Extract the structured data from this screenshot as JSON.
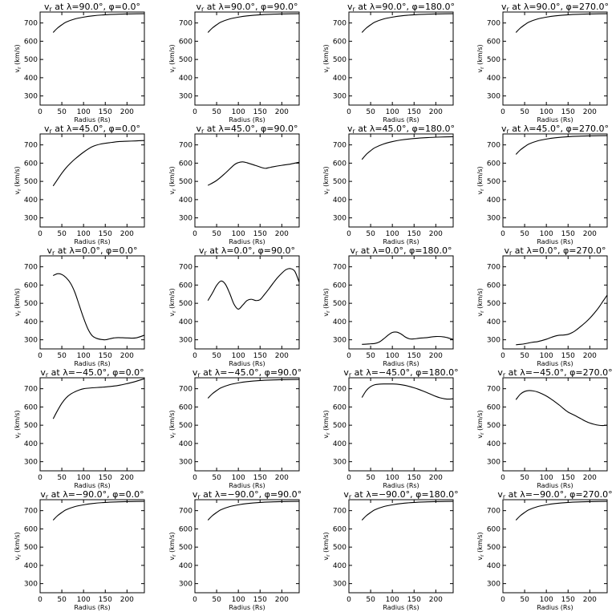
{
  "chart_data": [
    {
      "type": "line",
      "title": "v_r at λ=90.0°, φ=0.0°",
      "title_prefix": "v",
      "title_sub": "r",
      "title_rest": " at λ=90.0°, φ=0.0°",
      "xlabel": "Radius (Rs)",
      "ylabel": "v_r (km/s)",
      "xlim": [
        0,
        240
      ],
      "ylim": [
        250,
        760
      ],
      "xticks": [
        0,
        50,
        100,
        150,
        200
      ],
      "yticks": [
        300,
        400,
        500,
        600,
        700
      ],
      "x": [
        30,
        40,
        50,
        60,
        80,
        100,
        120,
        150,
        180,
        210,
        240
      ],
      "y": [
        648,
        672,
        690,
        705,
        722,
        732,
        739,
        745,
        748,
        750,
        751
      ]
    },
    {
      "type": "line",
      "title": "v_r at λ=90.0°, φ=90.0°",
      "title_prefix": "v",
      "title_sub": "r",
      "title_rest": " at λ=90.0°, φ=90.0°",
      "xlabel": "Radius (Rs)",
      "ylabel": "v_r (km/s)",
      "xlim": [
        0,
        240
      ],
      "ylim": [
        250,
        760
      ],
      "xticks": [
        0,
        50,
        100,
        150,
        200
      ],
      "yticks": [
        300,
        400,
        500,
        600,
        700
      ],
      "x": [
        30,
        40,
        50,
        60,
        80,
        100,
        120,
        150,
        180,
        210,
        240
      ],
      "y": [
        648,
        672,
        690,
        705,
        722,
        732,
        739,
        745,
        748,
        750,
        751
      ]
    },
    {
      "type": "line",
      "title": "v_r at λ=90.0°, φ=180.0°",
      "title_prefix": "v",
      "title_sub": "r",
      "title_rest": " at λ=90.0°, φ=180.0°",
      "xlabel": "Radius (Rs)",
      "ylabel": "v_r (km/s)",
      "xlim": [
        0,
        240
      ],
      "ylim": [
        250,
        760
      ],
      "xticks": [
        0,
        50,
        100,
        150,
        200
      ],
      "yticks": [
        300,
        400,
        500,
        600,
        700
      ],
      "x": [
        30,
        40,
        50,
        60,
        80,
        100,
        120,
        150,
        180,
        210,
        240
      ],
      "y": [
        648,
        672,
        690,
        705,
        722,
        732,
        739,
        745,
        748,
        750,
        751
      ]
    },
    {
      "type": "line",
      "title": "v_r at λ=90.0°, φ=270.0°",
      "title_prefix": "v",
      "title_sub": "r",
      "title_rest": " at λ=90.0°, φ=270.0°",
      "xlabel": "Radius (Rs)",
      "ylabel": "v_r (km/s)",
      "xlim": [
        0,
        240
      ],
      "ylim": [
        250,
        760
      ],
      "xticks": [
        0,
        50,
        100,
        150,
        200
      ],
      "yticks": [
        300,
        400,
        500,
        600,
        700
      ],
      "x": [
        30,
        40,
        50,
        60,
        80,
        100,
        120,
        150,
        180,
        210,
        240
      ],
      "y": [
        648,
        672,
        690,
        705,
        722,
        732,
        739,
        745,
        748,
        750,
        751
      ]
    },
    {
      "type": "line",
      "title": "v_r at λ=45.0°, φ=0.0°",
      "title_prefix": "v",
      "title_sub": "r",
      "title_rest": " at λ=45.0°, φ=0.0°",
      "xlabel": "Radius (Rs)",
      "ylabel": "v_r (km/s)",
      "xlim": [
        0,
        240
      ],
      "ylim": [
        250,
        760
      ],
      "xticks": [
        0,
        50,
        100,
        150,
        200
      ],
      "yticks": [
        300,
        400,
        500,
        600,
        700
      ],
      "x": [
        30,
        40,
        50,
        60,
        70,
        80,
        100,
        120,
        140,
        160,
        180,
        200,
        220,
        240
      ],
      "y": [
        475,
        510,
        545,
        575,
        600,
        622,
        660,
        690,
        705,
        712,
        718,
        720,
        722,
        724
      ]
    },
    {
      "type": "line",
      "title": "v_r at λ=45.0°, φ=90.0°",
      "title_prefix": "v",
      "title_sub": "r",
      "title_rest": " at λ=45.0°, φ=90.0°",
      "xlabel": "Radius (Rs)",
      "ylabel": "v_r (km/s)",
      "xlim": [
        0,
        240
      ],
      "ylim": [
        250,
        760
      ],
      "xticks": [
        0,
        50,
        100,
        150,
        200
      ],
      "yticks": [
        300,
        400,
        500,
        600,
        700
      ],
      "x": [
        30,
        50,
        70,
        90,
        100,
        110,
        120,
        140,
        160,
        170,
        180,
        200,
        220,
        240
      ],
      "y": [
        478,
        505,
        545,
        590,
        603,
        607,
        602,
        587,
        572,
        575,
        580,
        588,
        595,
        605
      ]
    },
    {
      "type": "line",
      "title": "v_r at λ=45.0°, φ=180.0°",
      "title_prefix": "v",
      "title_sub": "r",
      "title_rest": " at λ=45.0°, φ=180.0°",
      "xlabel": "Radius (Rs)",
      "ylabel": "v_r (km/s)",
      "xlim": [
        0,
        240
      ],
      "ylim": [
        250,
        760
      ],
      "xticks": [
        0,
        50,
        100,
        150,
        200
      ],
      "yticks": [
        300,
        400,
        500,
        600,
        700
      ],
      "x": [
        30,
        40,
        50,
        60,
        80,
        100,
        120,
        150,
        180,
        210,
        240
      ],
      "y": [
        620,
        648,
        668,
        685,
        705,
        718,
        727,
        735,
        740,
        743,
        745
      ]
    },
    {
      "type": "line",
      "title": "v_r at λ=45.0°, φ=270.0°",
      "title_prefix": "v",
      "title_sub": "r",
      "title_rest": " at λ=45.0°, φ=270.0°",
      "xlabel": "Radius (Rs)",
      "ylabel": "v_r (km/s)",
      "xlim": [
        0,
        240
      ],
      "ylim": [
        250,
        760
      ],
      "xticks": [
        0,
        50,
        100,
        150,
        200
      ],
      "yticks": [
        300,
        400,
        500,
        600,
        700
      ],
      "x": [
        30,
        40,
        50,
        60,
        80,
        100,
        120,
        150,
        180,
        210,
        240
      ],
      "y": [
        648,
        672,
        690,
        705,
        722,
        732,
        739,
        745,
        748,
        750,
        751
      ]
    },
    {
      "type": "line",
      "title": "v_r at λ=0.0°, φ=0.0°",
      "title_prefix": "v",
      "title_sub": "r",
      "title_rest": " at λ=0.0°, φ=0.0°",
      "xlabel": "Radius (Rs)",
      "ylabel": "v_r (km/s)",
      "xlim": [
        0,
        240
      ],
      "ylim": [
        250,
        760
      ],
      "xticks": [
        0,
        50,
        100,
        150,
        200
      ],
      "yticks": [
        300,
        400,
        500,
        600,
        700
      ],
      "x": [
        30,
        40,
        50,
        60,
        70,
        80,
        90,
        100,
        110,
        120,
        130,
        140,
        150,
        160,
        170,
        180,
        200,
        220,
        240
      ],
      "y": [
        652,
        662,
        658,
        640,
        610,
        560,
        490,
        420,
        360,
        322,
        308,
        302,
        300,
        305,
        310,
        312,
        310,
        310,
        325
      ]
    },
    {
      "type": "line",
      "title": "v_r at λ=0.0°, φ=90.0°",
      "title_prefix": "v",
      "title_sub": "r",
      "title_rest": " at λ=0.0°, φ=90.0°",
      "xlabel": "Radius (Rs)",
      "ylabel": "v_r (km/s)",
      "xlim": [
        0,
        240
      ],
      "ylim": [
        250,
        760
      ],
      "xticks": [
        0,
        50,
        100,
        150,
        200
      ],
      "yticks": [
        300,
        400,
        500,
        600,
        700
      ],
      "x": [
        30,
        40,
        50,
        60,
        70,
        80,
        90,
        100,
        110,
        120,
        130,
        140,
        150,
        160,
        170,
        180,
        190,
        200,
        210,
        220,
        230,
        240
      ],
      "y": [
        515,
        555,
        598,
        622,
        605,
        555,
        495,
        468,
        490,
        515,
        522,
        515,
        520,
        548,
        578,
        610,
        640,
        665,
        685,
        690,
        675,
        615
      ]
    },
    {
      "type": "line",
      "title": "v_r at λ=0.0°, φ=180.0°",
      "title_prefix": "v",
      "title_sub": "r",
      "title_rest": " at λ=0.0°, φ=180.0°",
      "xlabel": "Radius (Rs)",
      "ylabel": "v_r (km/s)",
      "xlim": [
        0,
        240
      ],
      "ylim": [
        250,
        760
      ],
      "xticks": [
        0,
        50,
        100,
        150,
        200
      ],
      "yticks": [
        300,
        400,
        500,
        600,
        700
      ],
      "x": [
        30,
        40,
        50,
        60,
        70,
        80,
        90,
        100,
        110,
        120,
        130,
        140,
        150,
        160,
        170,
        180,
        200,
        220,
        240
      ],
      "y": [
        275,
        276,
        278,
        280,
        288,
        305,
        325,
        340,
        342,
        332,
        315,
        305,
        305,
        308,
        310,
        312,
        318,
        315,
        302
      ]
    },
    {
      "type": "line",
      "title": "v_r at λ=0.0°, φ=270.0°",
      "title_prefix": "v",
      "title_sub": "r",
      "title_rest": " at λ=0.0°, φ=270.0°",
      "xlabel": "Radius (Rs)",
      "ylabel": "v_r (km/s)",
      "xlim": [
        0,
        240
      ],
      "ylim": [
        250,
        760
      ],
      "xticks": [
        0,
        50,
        100,
        150,
        200
      ],
      "yticks": [
        300,
        400,
        500,
        600,
        700
      ],
      "x": [
        30,
        40,
        50,
        60,
        70,
        80,
        90,
        100,
        110,
        120,
        130,
        140,
        150,
        160,
        170,
        180,
        190,
        200,
        210,
        220,
        230,
        240
      ],
      "y": [
        273,
        275,
        278,
        283,
        287,
        290,
        296,
        303,
        312,
        320,
        325,
        326,
        330,
        340,
        356,
        375,
        395,
        418,
        445,
        475,
        510,
        545
      ]
    },
    {
      "type": "line",
      "title": "v_r at λ=−45.0°, φ=0.0°",
      "title_prefix": "v",
      "title_sub": "r",
      "title_rest": " at λ=−45.0°, φ=0.0°",
      "xlabel": "Radius (Rs)",
      "ylabel": "v_r (km/s)",
      "xlim": [
        0,
        240
      ],
      "ylim": [
        250,
        760
      ],
      "xticks": [
        0,
        50,
        100,
        150,
        200
      ],
      "yticks": [
        300,
        400,
        500,
        600,
        700
      ],
      "x": [
        30,
        40,
        50,
        60,
        70,
        80,
        90,
        100,
        120,
        140,
        160,
        180,
        200,
        220,
        240
      ],
      "y": [
        535,
        580,
        620,
        650,
        670,
        683,
        693,
        700,
        705,
        708,
        712,
        718,
        728,
        740,
        755
      ]
    },
    {
      "type": "line",
      "title": "v_r at λ=−45.0°, φ=90.0°",
      "title_prefix": "v",
      "title_sub": "r",
      "title_rest": " at λ=−45.0°, φ=90.0°",
      "xlabel": "Radius (Rs)",
      "ylabel": "v_r (km/s)",
      "xlim": [
        0,
        240
      ],
      "ylim": [
        250,
        760
      ],
      "xticks": [
        0,
        50,
        100,
        150,
        200
      ],
      "yticks": [
        300,
        400,
        500,
        600,
        700
      ],
      "x": [
        30,
        40,
        50,
        60,
        80,
        100,
        120,
        150,
        180,
        210,
        240
      ],
      "y": [
        648,
        672,
        690,
        705,
        722,
        732,
        739,
        745,
        748,
        750,
        751
      ]
    },
    {
      "type": "line",
      "title": "v_r at λ=−45.0°, φ=180.0°",
      "title_prefix": "v",
      "title_sub": "r",
      "title_rest": " at λ=−45.0°, φ=180.0°",
      "xlabel": "Radius (Rs)",
      "ylabel": "v_r (km/s)",
      "xlim": [
        0,
        240
      ],
      "ylim": [
        250,
        760
      ],
      "xticks": [
        0,
        50,
        100,
        150,
        200
      ],
      "yticks": [
        300,
        400,
        500,
        600,
        700
      ],
      "x": [
        30,
        40,
        50,
        60,
        70,
        80,
        90,
        100,
        110,
        120,
        130,
        140,
        150,
        160,
        170,
        180,
        190,
        200,
        210,
        220,
        230,
        240
      ],
      "y": [
        652,
        690,
        712,
        722,
        725,
        726,
        726,
        726,
        725,
        722,
        718,
        712,
        705,
        697,
        688,
        678,
        668,
        658,
        650,
        645,
        643,
        645
      ]
    },
    {
      "type": "line",
      "title": "v_r at λ=−45.0°, φ=270.0°",
      "title_prefix": "v",
      "title_sub": "r",
      "title_rest": " at λ=−45.0°, φ=270.0°",
      "xlabel": "Radius (Rs)",
      "ylabel": "v_r (km/s)",
      "xlim": [
        0,
        240
      ],
      "ylim": [
        250,
        760
      ],
      "xticks": [
        0,
        50,
        100,
        150,
        200
      ],
      "yticks": [
        300,
        400,
        500,
        600,
        700
      ],
      "x": [
        30,
        40,
        50,
        60,
        70,
        80,
        90,
        100,
        110,
        120,
        130,
        140,
        150,
        160,
        170,
        180,
        190,
        200,
        210,
        220,
        230,
        240
      ],
      "y": [
        640,
        670,
        685,
        690,
        688,
        682,
        672,
        660,
        645,
        628,
        610,
        590,
        572,
        560,
        548,
        535,
        522,
        512,
        505,
        500,
        498,
        500
      ]
    },
    {
      "type": "line",
      "title": "v_r at λ=−90.0°, φ=0.0°",
      "title_prefix": "v",
      "title_sub": "r",
      "title_rest": " at λ=−90.0°, φ=0.0°",
      "xlabel": "Radius (Rs)",
      "ylabel": "v_r (km/s)",
      "xlim": [
        0,
        240
      ],
      "ylim": [
        250,
        760
      ],
      "xticks": [
        0,
        50,
        100,
        150,
        200
      ],
      "yticks": [
        300,
        400,
        500,
        600,
        700
      ],
      "x": [
        30,
        40,
        50,
        60,
        80,
        100,
        120,
        150,
        180,
        210,
        240
      ],
      "y": [
        648,
        672,
        690,
        705,
        722,
        732,
        739,
        745,
        748,
        750,
        751
      ]
    },
    {
      "type": "line",
      "title": "v_r at λ=−90.0°, φ=90.0°",
      "title_prefix": "v",
      "title_sub": "r",
      "title_rest": " at λ=−90.0°, φ=90.0°",
      "xlabel": "Radius (Rs)",
      "ylabel": "v_r (km/s)",
      "xlim": [
        0,
        240
      ],
      "ylim": [
        250,
        760
      ],
      "xticks": [
        0,
        50,
        100,
        150,
        200
      ],
      "yticks": [
        300,
        400,
        500,
        600,
        700
      ],
      "x": [
        30,
        40,
        50,
        60,
        80,
        100,
        120,
        150,
        180,
        210,
        240
      ],
      "y": [
        648,
        672,
        690,
        705,
        722,
        732,
        739,
        745,
        748,
        750,
        751
      ]
    },
    {
      "type": "line",
      "title": "v_r at λ=−90.0°, φ=180.0°",
      "title_prefix": "v",
      "title_sub": "r",
      "title_rest": " at λ=−90.0°, φ=180.0°",
      "xlabel": "Radius (Rs)",
      "ylabel": "v_r (km/s)",
      "xlim": [
        0,
        240
      ],
      "ylim": [
        250,
        760
      ],
      "xticks": [
        0,
        50,
        100,
        150,
        200
      ],
      "yticks": [
        300,
        400,
        500,
        600,
        700
      ],
      "x": [
        30,
        40,
        50,
        60,
        80,
        100,
        120,
        150,
        180,
        210,
        240
      ],
      "y": [
        648,
        672,
        690,
        705,
        722,
        732,
        739,
        745,
        748,
        750,
        751
      ]
    },
    {
      "type": "line",
      "title": "v_r at λ=−90.0°, φ=270.0°",
      "title_prefix": "v",
      "title_sub": "r",
      "title_rest": " at λ=−90.0°, φ=270.0°",
      "xlabel": "Radius (Rs)",
      "ylabel": "v_r (km/s)",
      "xlim": [
        0,
        240
      ],
      "ylim": [
        250,
        760
      ],
      "xticks": [
        0,
        50,
        100,
        150,
        200
      ],
      "yticks": [
        300,
        400,
        500,
        600,
        700
      ],
      "x": [
        30,
        40,
        50,
        60,
        80,
        100,
        120,
        150,
        180,
        210,
        240
      ],
      "y": [
        648,
        672,
        690,
        705,
        722,
        732,
        739,
        745,
        748,
        750,
        751
      ]
    }
  ]
}
